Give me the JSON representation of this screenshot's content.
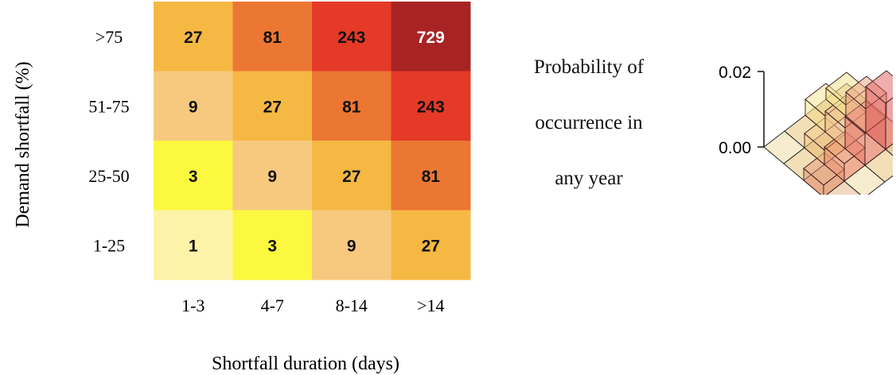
{
  "chart_data": [
    {
      "type": "heatmap",
      "title": "",
      "xlabel": "Shortfall duration (days)",
      "ylabel": "Demand shortfall (%)",
      "x_categories": [
        "1-3",
        "4-7",
        "8-14",
        ">14"
      ],
      "y_categories": [
        ">75",
        "51-75",
        "25-50",
        "1-25"
      ],
      "values": [
        [
          27,
          81,
          243,
          729
        ],
        [
          9,
          27,
          81,
          243
        ],
        [
          3,
          9,
          27,
          81
        ],
        [
          1,
          3,
          9,
          27
        ]
      ],
      "colors": {
        "1": "#fdf3a8",
        "3": "#fbf83f",
        "9": "#f7c97f",
        "27": "#f5b843",
        "81": "#ec7733",
        "243": "#e43a27",
        "729": "#a82424"
      },
      "grid": false,
      "legend": "none"
    },
    {
      "type": "bar3d",
      "ytick_labels": [
        "0.02",
        "0.00"
      ],
      "ylim": [
        0,
        0.02
      ]
    }
  ],
  "caption": {
    "line1": "Probability of",
    "line2": "occurrence in",
    "line3": "any year"
  }
}
